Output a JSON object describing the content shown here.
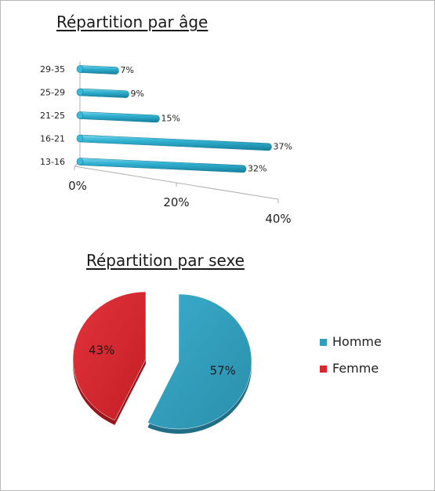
{
  "chart_data": [
    {
      "type": "bar",
      "orientation": "horizontal",
      "title": "Répartition par âge",
      "categories": [
        "13-16",
        "16-21",
        "21-25",
        "25-29",
        "29-35"
      ],
      "values": [
        32,
        37,
        15,
        9,
        7
      ],
      "value_labels": [
        "32%",
        "37%",
        "15%",
        "9%",
        "7%"
      ],
      "xlim": [
        0,
        40
      ],
      "x_ticks": [
        "0%",
        "20%",
        "40%"
      ],
      "color": "#2aa6c6",
      "grid": false
    },
    {
      "type": "pie",
      "title": "Répartition par sexe",
      "slices": [
        {
          "label": "Homme",
          "value": 57,
          "display": "57%",
          "color": "#2f9fbd"
        },
        {
          "label": "Femme",
          "value": 43,
          "display": "43%",
          "color": "#d9262f"
        }
      ],
      "legend": "right"
    }
  ]
}
